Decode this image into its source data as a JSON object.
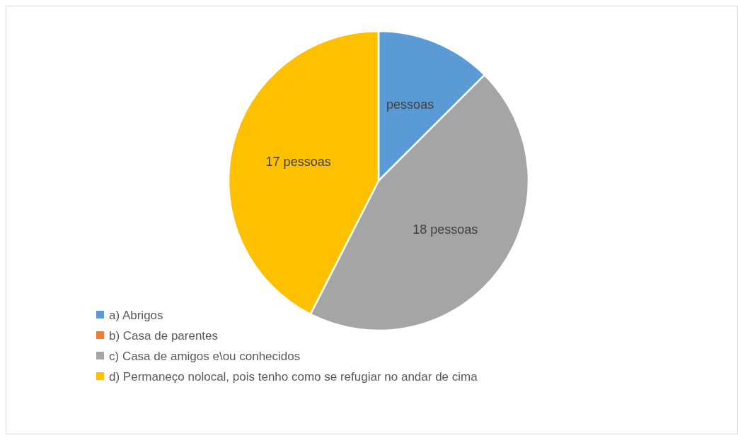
{
  "chart_data": {
    "type": "pie",
    "categories": [
      "a) Abrigos",
      "b) Casa de parentes",
      "c) Casa de amigos e\\ou conhecidos",
      "d) Permaneço nolocal, pois tenho como se refugiar no andar de cima"
    ],
    "values": [
      5,
      0,
      18,
      17
    ],
    "colors": [
      "#5b9bd5",
      "#ed7d31",
      "#a5a5a5",
      "#ffc000"
    ],
    "value_labels": [
      "pessoas",
      null,
      "18 pessoas",
      "17 pessoas"
    ],
    "legend": "bottom left"
  }
}
